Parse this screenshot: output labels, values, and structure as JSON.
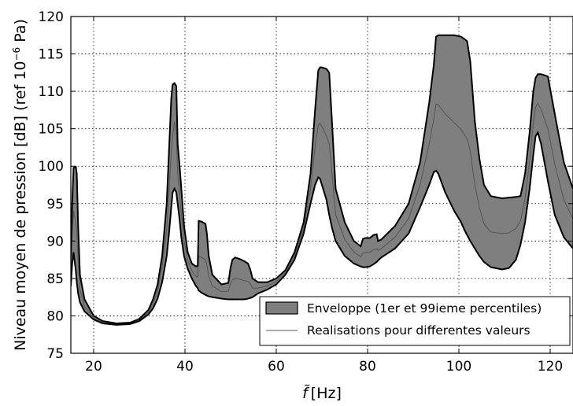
{
  "chart_data": {
    "type": "area",
    "title": "",
    "xlabel_symbol": "f̃",
    "xlabel_unit": "[Hz]",
    "ylabel_main": "Niveau moyen de pression [dB] (ref 10",
    "ylabel_exp": "−6",
    "ylabel_end": " Pa)",
    "xlim": [
      15,
      125
    ],
    "ylim": [
      75,
      120
    ],
    "xticks": [
      20,
      40,
      60,
      80,
      100,
      120
    ],
    "yticks": [
      75,
      80,
      85,
      90,
      95,
      100,
      105,
      110,
      115,
      120
    ],
    "grid": true,
    "legend_position": "lower-right",
    "colors": {
      "envelope_fill": "#7f7f7f",
      "envelope_edge": "#000000",
      "realisation": "#555555"
    },
    "series": [
      {
        "name": "Enveloppe (1er et 99ieme percentiles)",
        "role": "envelope-upper",
        "x": [
          15.0,
          15.3,
          15.6,
          16.1,
          16.3,
          16.6,
          17,
          18,
          20,
          22,
          25,
          28,
          30,
          32,
          33,
          34,
          35,
          36,
          36.5,
          37,
          37.3,
          37.7,
          38.1,
          38.4,
          38.8,
          39.2,
          39.8,
          40.6,
          41.5,
          42.4,
          42.8,
          43.0,
          43.6,
          44.5,
          44.8,
          45.2,
          46.0,
          48,
          49.5,
          50.0,
          50.4,
          51.0,
          52.0,
          53.0,
          53.8,
          54.3,
          54.8,
          56,
          58,
          60,
          62,
          64,
          66,
          67.5,
          68.5,
          69.2,
          69.6,
          70.0,
          71.0,
          71.6,
          72.2,
          73,
          75,
          77,
          78.5,
          79.0,
          79.5,
          80.5,
          81.3,
          82.0,
          82.3,
          83,
          86,
          89,
          91.5,
          93.5,
          94.5,
          95.0,
          95.5,
          97,
          99,
          100.5,
          101.2,
          101.8,
          102.5,
          103.5,
          104.5,
          105.5,
          107,
          109.5,
          111,
          112.5,
          113.5,
          114.5,
          115.5,
          116.3,
          116.8,
          117.3,
          118.0,
          119.5,
          121,
          123,
          125
        ],
        "y": [
          88.0,
          95.0,
          99.8,
          99.9,
          99.0,
          92.0,
          85.5,
          82.2,
          80.0,
          79.3,
          79.0,
          79.1,
          79.6,
          80.8,
          82.2,
          84.2,
          88.0,
          95.0,
          102.0,
          109.0,
          110.9,
          111.1,
          110.7,
          103.0,
          100.2,
          97.0,
          92.0,
          88.5,
          87.0,
          86.6,
          86.7,
          92.7,
          92.6,
          92.3,
          91.0,
          88.0,
          85.5,
          84.2,
          84.4,
          86.5,
          87.5,
          87.8,
          87.6,
          87.3,
          87.0,
          86.2,
          85.0,
          84.5,
          84.5,
          85.0,
          86.1,
          88.5,
          92.5,
          99.0,
          107.5,
          112.8,
          113.2,
          113.2,
          113.0,
          112.5,
          106.0,
          97.0,
          92.5,
          90.0,
          89.3,
          90.3,
          90.4,
          90.4,
          90.8,
          90.9,
          90.0,
          90.2,
          92.0,
          95.0,
          100.5,
          108.5,
          113.5,
          117.3,
          117.5,
          117.5,
          117.5,
          117.3,
          117.0,
          116.7,
          114.0,
          106.0,
          101.0,
          97.5,
          96.0,
          95.7,
          95.8,
          95.9,
          96.0,
          99.0,
          104.5,
          110.0,
          111.8,
          112.3,
          112.3,
          112.0,
          107.0,
          100.5,
          97.0
        ]
      },
      {
        "name": "",
        "role": "envelope-lower",
        "x": [
          15.0,
          15.3,
          15.6,
          16.1,
          16.3,
          16.6,
          17,
          18,
          20,
          22,
          25,
          28,
          30,
          32,
          33,
          34,
          35,
          36,
          36.5,
          37,
          37.3,
          37.7,
          38.1,
          38.4,
          38.8,
          39.2,
          39.8,
          40.6,
          41.5,
          42.4,
          42.8,
          43.0,
          43.6,
          44.5,
          44.8,
          45.2,
          46.0,
          48,
          49.5,
          50.0,
          50.4,
          51.0,
          52.0,
          53.0,
          53.8,
          54.3,
          54.8,
          56,
          58,
          60,
          62,
          64,
          66,
          67.5,
          68.5,
          69.2,
          69.6,
          70.0,
          71.0,
          71.6,
          72.2,
          73,
          75,
          77,
          78.5,
          79.0,
          79.5,
          80.5,
          81.3,
          82.0,
          82.3,
          83,
          86,
          89,
          91.5,
          93.5,
          94.5,
          95.0,
          95.5,
          97,
          99,
          100.5,
          101.2,
          101.8,
          102.5,
          103.5,
          104.5,
          105.5,
          107,
          109.5,
          111,
          112.5,
          113.5,
          114.5,
          115.5,
          116.3,
          116.8,
          117.3,
          118.0,
          119.5,
          121,
          123,
          125
        ],
        "y": [
          84.0,
          87.0,
          88.5,
          86.0,
          84.5,
          83.0,
          81.8,
          80.6,
          79.5,
          79.0,
          78.8,
          78.9,
          79.3,
          80.2,
          81.0,
          82.3,
          84.5,
          88.0,
          91.0,
          94.5,
          96.5,
          97.0,
          96.5,
          95.0,
          93.0,
          90.5,
          88.0,
          86.3,
          85.0,
          84.0,
          83.7,
          83.4,
          83.1,
          82.8,
          82.7,
          82.6,
          82.5,
          82.3,
          82.2,
          82.2,
          82.2,
          82.2,
          82.2,
          82.2,
          82.3,
          82.4,
          82.5,
          83.0,
          83.5,
          84.2,
          85.5,
          87.5,
          91.0,
          95.0,
          97.5,
          98.5,
          98.3,
          97.5,
          95.5,
          93.5,
          91.8,
          90.0,
          88.0,
          87.0,
          86.6,
          86.5,
          86.5,
          86.6,
          86.9,
          87.2,
          87.4,
          87.8,
          89.0,
          91.0,
          94.5,
          97.5,
          99.2,
          99.4,
          99.0,
          96.5,
          94.0,
          92.5,
          91.5,
          90.8,
          90.0,
          89.0,
          88.0,
          87.2,
          86.5,
          86.2,
          86.4,
          87.5,
          89.5,
          92.5,
          97.0,
          101.5,
          104.0,
          104.5,
          103.0,
          98.0,
          93.5,
          90.5,
          89.0
        ]
      },
      {
        "name": "Realisations pour differentes valeurs",
        "role": "realisation",
        "x": [
          15.0,
          15.3,
          15.6,
          16.1,
          16.3,
          16.6,
          17,
          18,
          20,
          22,
          25,
          28,
          30,
          32,
          33,
          34,
          35,
          36,
          36.5,
          37,
          37.3,
          37.7,
          38.1,
          38.4,
          38.8,
          39.2,
          39.8,
          40.6,
          41.5,
          42.4,
          42.8,
          43.0,
          43.6,
          44.5,
          44.8,
          45.2,
          46.0,
          48,
          49.5,
          50.0,
          50.4,
          51.0,
          52.0,
          53.0,
          53.8,
          54.3,
          54.8,
          56,
          58,
          60,
          62,
          64,
          66,
          67.5,
          68.5,
          69.2,
          69.6,
          70.0,
          71.0,
          71.6,
          72.2,
          73,
          75,
          77,
          78.5,
          79.0,
          79.5,
          80.5,
          81.3,
          82.0,
          82.3,
          83,
          86,
          89,
          91.5,
          93.5,
          94.5,
          95.0,
          95.5,
          97,
          99,
          100.5,
          101.2,
          101.8,
          102.5,
          103.5,
          104.5,
          105.5,
          107,
          109.5,
          111,
          112.5,
          113.5,
          114.5,
          115.5,
          116.3,
          116.8,
          117.3,
          118.0,
          119.5,
          121,
          123,
          125
        ],
        "y": [
          86.0,
          91.0,
          94.0,
          92.5,
          91.0,
          87.5,
          83.5,
          81.3,
          79.7,
          79.1,
          78.9,
          79.0,
          79.4,
          80.5,
          81.6,
          83.3,
          86.5,
          91.5,
          96.5,
          102.0,
          104.0,
          106.0,
          104.5,
          99.0,
          96.5,
          93.5,
          90.0,
          87.4,
          86.0,
          85.3,
          85.2,
          88.0,
          87.8,
          87.5,
          86.8,
          85.3,
          84.0,
          83.2,
          83.3,
          84.3,
          84.8,
          85.0,
          84.9,
          84.7,
          84.6,
          84.3,
          83.7,
          83.7,
          84.0,
          84.6,
          85.8,
          88.0,
          91.7,
          97.0,
          102.5,
          105.5,
          105.7,
          105.3,
          104.0,
          103.0,
          99.0,
          93.5,
          90.2,
          88.5,
          87.9,
          88.4,
          88.5,
          88.5,
          88.8,
          89.0,
          88.7,
          89.0,
          90.5,
          93.0,
          97.5,
          103.0,
          106.3,
          108.3,
          108.2,
          107.0,
          105.8,
          104.9,
          104.2,
          103.7,
          102.0,
          97.5,
          94.5,
          92.3,
          91.2,
          91.0,
          91.1,
          91.7,
          92.7,
          95.7,
          100.7,
          105.7,
          107.9,
          108.4,
          107.6,
          105.0,
          100.3,
          95.5,
          93.0
        ]
      }
    ],
    "legend": [
      {
        "label": "Enveloppe (1er et 99ieme percentiles)",
        "kind": "patch"
      },
      {
        "label": "Realisations pour differentes valeurs",
        "kind": "line"
      }
    ]
  }
}
